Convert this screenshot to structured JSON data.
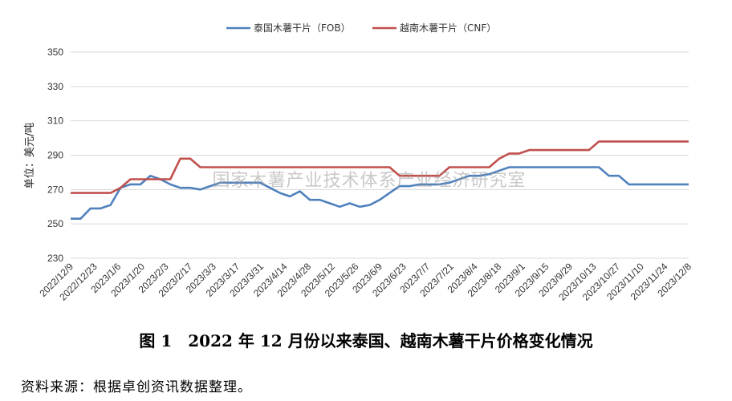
{
  "chart_data": {
    "type": "line",
    "ylabel": "单位：美元/吨",
    "ylim": [
      230,
      350
    ],
    "yticks": [
      230,
      250,
      270,
      290,
      310,
      330,
      350
    ],
    "grid": "horizontal",
    "legend": "top-center",
    "xtick_labels": [
      "2022/12/9",
      "2022/12/23",
      "2023/1/6",
      "2023/1/20",
      "2023/2/3",
      "2023/2/17",
      "2023/3/3",
      "2023/3/17",
      "2023/3/31",
      "2023/4/14",
      "2023/4/28",
      "2023/5/12",
      "2023/5/26",
      "2023/6/9",
      "2023/6/23",
      "2023/7/7",
      "2023/7/21",
      "2023/8/4",
      "2023/8/18",
      "2023/9/1",
      "2023/9/15",
      "2023/9/29",
      "2023/10/13",
      "2023/10/27",
      "2023/11/10",
      "2023/11/24",
      "2023/12/8"
    ],
    "series": [
      {
        "name": "泰国木薯干片（FOB）",
        "color": "#4f81bd",
        "values": [
          253,
          253,
          259,
          259,
          261,
          271,
          273,
          273,
          278,
          276,
          273,
          271,
          271,
          270,
          272,
          274,
          274,
          274,
          274,
          274,
          271,
          268,
          266,
          269,
          264,
          264,
          262,
          260,
          262,
          260,
          261,
          264,
          268,
          272,
          272,
          273,
          273,
          273,
          274,
          276,
          278,
          278,
          279,
          281,
          283,
          283,
          283,
          283,
          283,
          283,
          283,
          283,
          283,
          283,
          278,
          278,
          273,
          273,
          273,
          273,
          273,
          273,
          273
        ]
      },
      {
        "name": "越南木薯干片（CNF）",
        "color": "#c0504d",
        "values": [
          268,
          268,
          268,
          268,
          268,
          271,
          276,
          276,
          276,
          276,
          276,
          288,
          288,
          283,
          283,
          283,
          283,
          283,
          283,
          283,
          283,
          283,
          283,
          283,
          283,
          283,
          283,
          283,
          283,
          283,
          283,
          283,
          283,
          278,
          278,
          278,
          278,
          278,
          283,
          283,
          283,
          283,
          283,
          288,
          291,
          291,
          293,
          293,
          293,
          293,
          293,
          293,
          293,
          298,
          298,
          298,
          298,
          298,
          298,
          298,
          298,
          298,
          298
        ]
      }
    ]
  },
  "watermark": "国家木薯产业技术体系产业经济研究室",
  "caption": "图 1　2022 年 12 月份以来泰国、越南木薯干片价格变化情况",
  "source": "资料来源：根据卓创资讯数据整理。"
}
